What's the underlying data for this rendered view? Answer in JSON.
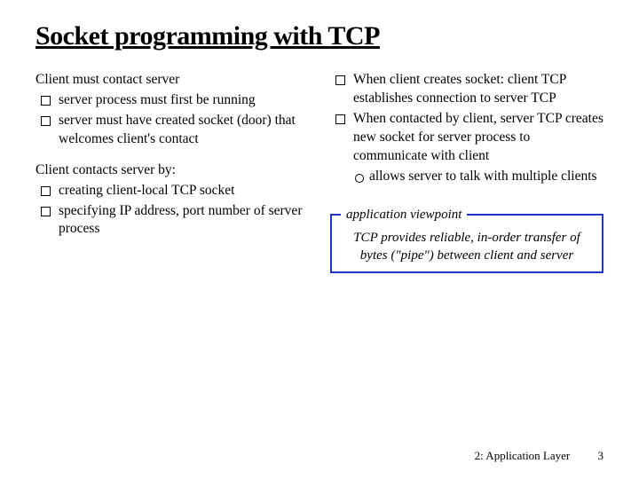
{
  "title": "Socket programming with TCP",
  "left": {
    "sec1_head": "Client must contact server",
    "sec1_items": [
      "server process must first be running",
      "server must have created socket (door) that welcomes client's contact"
    ],
    "sec2_head": "Client contacts server by:",
    "sec2_items": [
      "creating client-local TCP socket",
      "specifying IP address, port number of server process"
    ]
  },
  "right": {
    "items": [
      "When client creates socket: client TCP establishes connection to server TCP",
      "When contacted by client, server TCP creates new socket for server process to communicate with client"
    ],
    "sub_items": [
      "allows server to talk with multiple clients"
    ],
    "viewpoint_legend": "application viewpoint",
    "viewpoint_body": "TCP provides reliable, in-order transfer of bytes (\"pipe\") between client and server"
  },
  "footer": {
    "chapter": "2: Application Layer",
    "page": "3"
  },
  "colors": {
    "border": "#2233cc",
    "text": "#000000",
    "background": "#ffffff"
  }
}
